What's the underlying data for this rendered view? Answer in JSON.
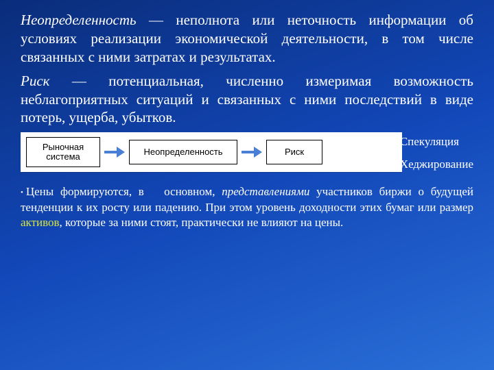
{
  "def1": {
    "term": "Неопределенность",
    "text": " — неполнота или неточность информации об условиях реализации экономической деятельности, в том числе связанных с ними затратах и результатах."
  },
  "def2": {
    "term": "Риск",
    "text": " — потенциальная, численно измеримая возможность неблагоприятных ситуаций и связанных с ними последствий в виде потерь, ущерба, убытков."
  },
  "diagram": {
    "box1": "Рыночная система",
    "box2": "Неопределенность",
    "box3": "Риск",
    "side1": "Спекуляция",
    "side2": "Хеджирование"
  },
  "bottom": {
    "lead": "Цены формируются, в",
    "mid1": "основном, ",
    "ital": "представлениями",
    "mid2": " участников биржи о будущей тенденции к их росту или падению. При этом уровень доходности этих бумаг или размер ",
    "hl": "активов",
    "tail": ", которые за ними стоят, практически не влияют на цены."
  },
  "colors": {
    "highlight": "#d6e340"
  }
}
